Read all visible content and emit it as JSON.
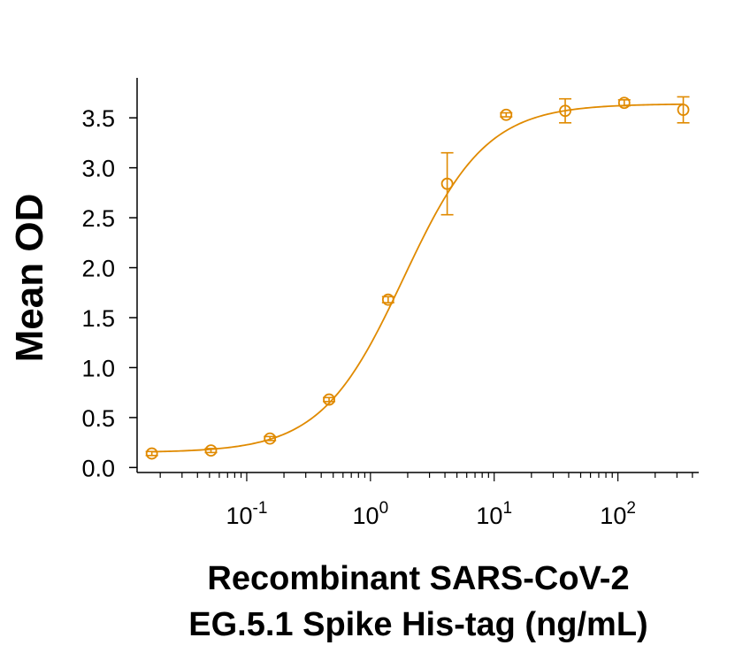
{
  "chart_data": {
    "type": "scatter",
    "title": "",
    "xlabel_lines": [
      "Recombinant SARS-CoV-2",
      "EG.5.1 Spike His-tag (ng/mL)"
    ],
    "ylabel": "Mean OD",
    "x_scale": "log",
    "xlim": [
      0.013,
      450
    ],
    "ylim": [
      -0.05,
      3.9
    ],
    "y_ticks": [
      {
        "value": 0.0,
        "label": "0.0"
      },
      {
        "value": 0.5,
        "label": "0.5"
      },
      {
        "value": 1.0,
        "label": "1.0"
      },
      {
        "value": 1.5,
        "label": "1.5"
      },
      {
        "value": 2.0,
        "label": "2.0"
      },
      {
        "value": 2.5,
        "label": "2.5"
      },
      {
        "value": 3.0,
        "label": "3.0"
      },
      {
        "value": 3.5,
        "label": "3.5"
      }
    ],
    "x_ticks": [
      {
        "value": 0.1,
        "base": "10",
        "exp": "-1"
      },
      {
        "value": 1,
        "base": "10",
        "exp": "0"
      },
      {
        "value": 10,
        "base": "10",
        "exp": "1"
      },
      {
        "value": 100,
        "base": "10",
        "exp": "2"
      }
    ],
    "color": "#E08A00",
    "grid": false,
    "legend": "none",
    "series": [
      {
        "points": [
          {
            "x": 0.0171,
            "y": 0.14,
            "err": 0.02
          },
          {
            "x": 0.0514,
            "y": 0.17,
            "err": 0.02
          },
          {
            "x": 0.154,
            "y": 0.29,
            "err": 0.02
          },
          {
            "x": 0.463,
            "y": 0.68,
            "err": 0.02
          },
          {
            "x": 1.39,
            "y": 1.68,
            "err": 0.03
          },
          {
            "x": 4.17,
            "y": 2.84,
            "err": 0.31
          },
          {
            "x": 12.5,
            "y": 3.53,
            "err": 0.02
          },
          {
            "x": 37.5,
            "y": 3.57,
            "err": 0.12
          },
          {
            "x": 112.5,
            "y": 3.65,
            "err": 0.03
          },
          {
            "x": 337.5,
            "y": 3.58,
            "err": 0.13
          }
        ],
        "fit": {
          "model": "4PL",
          "bottom": 0.15,
          "top": 3.64,
          "ec50": 1.85,
          "hill": 1.3
        }
      }
    ]
  }
}
